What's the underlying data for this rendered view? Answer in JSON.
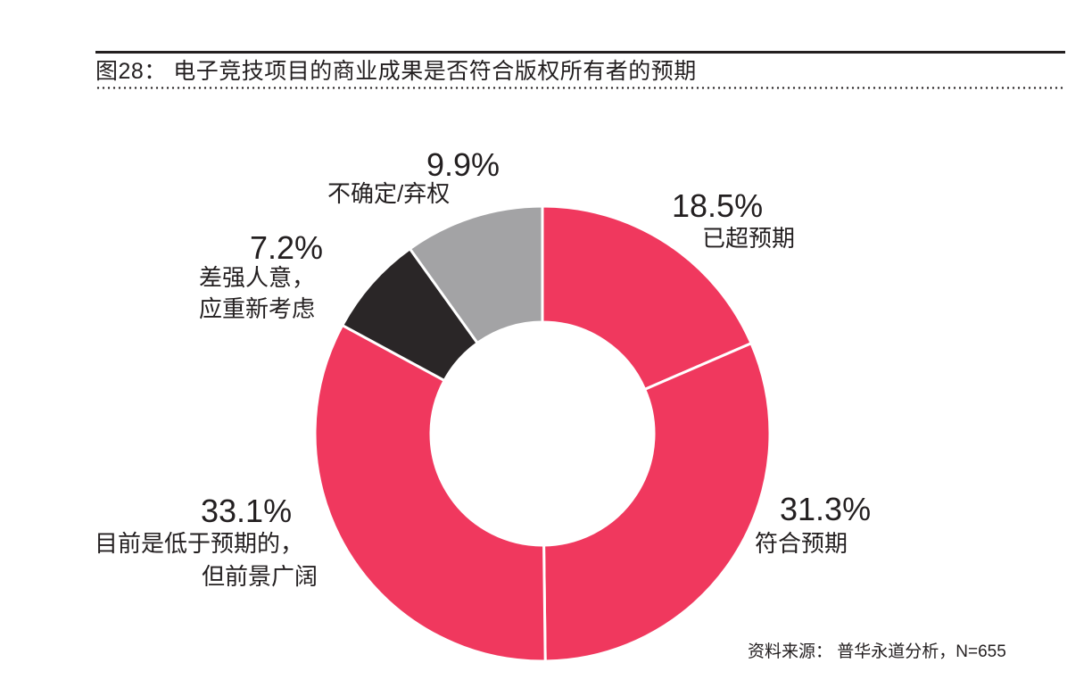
{
  "header": {
    "title": "图28： 电子竞技项目的商业成果是否符合版权所有者的预期"
  },
  "footer": {
    "source": "资料来源： 普华永道分析，N=655"
  },
  "labels": {
    "exceeded": {
      "pct": "18.5%",
      "text": "已超预期"
    },
    "met": {
      "pct": "31.3%",
      "text": "符合预期"
    },
    "below": {
      "pct": "33.1%",
      "line1": "目前是低于预期的，",
      "line2": "但前景广阔"
    },
    "poor": {
      "pct": "7.2%",
      "line1": "差强人意，",
      "line2": "应重新考虑"
    },
    "unsure": {
      "pct": "9.9%",
      "text": "不确定/弃权"
    }
  },
  "chart_data": {
    "type": "pie",
    "subtype": "donut",
    "title": "图28： 电子竞技项目的商业成果是否符合版权所有者的预期",
    "categories": [
      "已超预期",
      "符合预期",
      "目前是低于预期的，但前景广阔",
      "差强人意，应重新考虑",
      "不确定/弃权"
    ],
    "values": [
      18.5,
      31.3,
      33.1,
      7.2,
      9.9
    ],
    "unit": "%",
    "colors": [
      "#f0385e",
      "#f0385e",
      "#f0385e",
      "#2a2627",
      "#a3a3a5"
    ],
    "start_angle_deg": 0,
    "direction": "clockwise",
    "center": [
      608,
      486
    ],
    "outer_radius": 255,
    "inner_radius": 125,
    "annotation": "资料来源： 普华永道分析，N=655",
    "legend": "none (direct labels)"
  }
}
